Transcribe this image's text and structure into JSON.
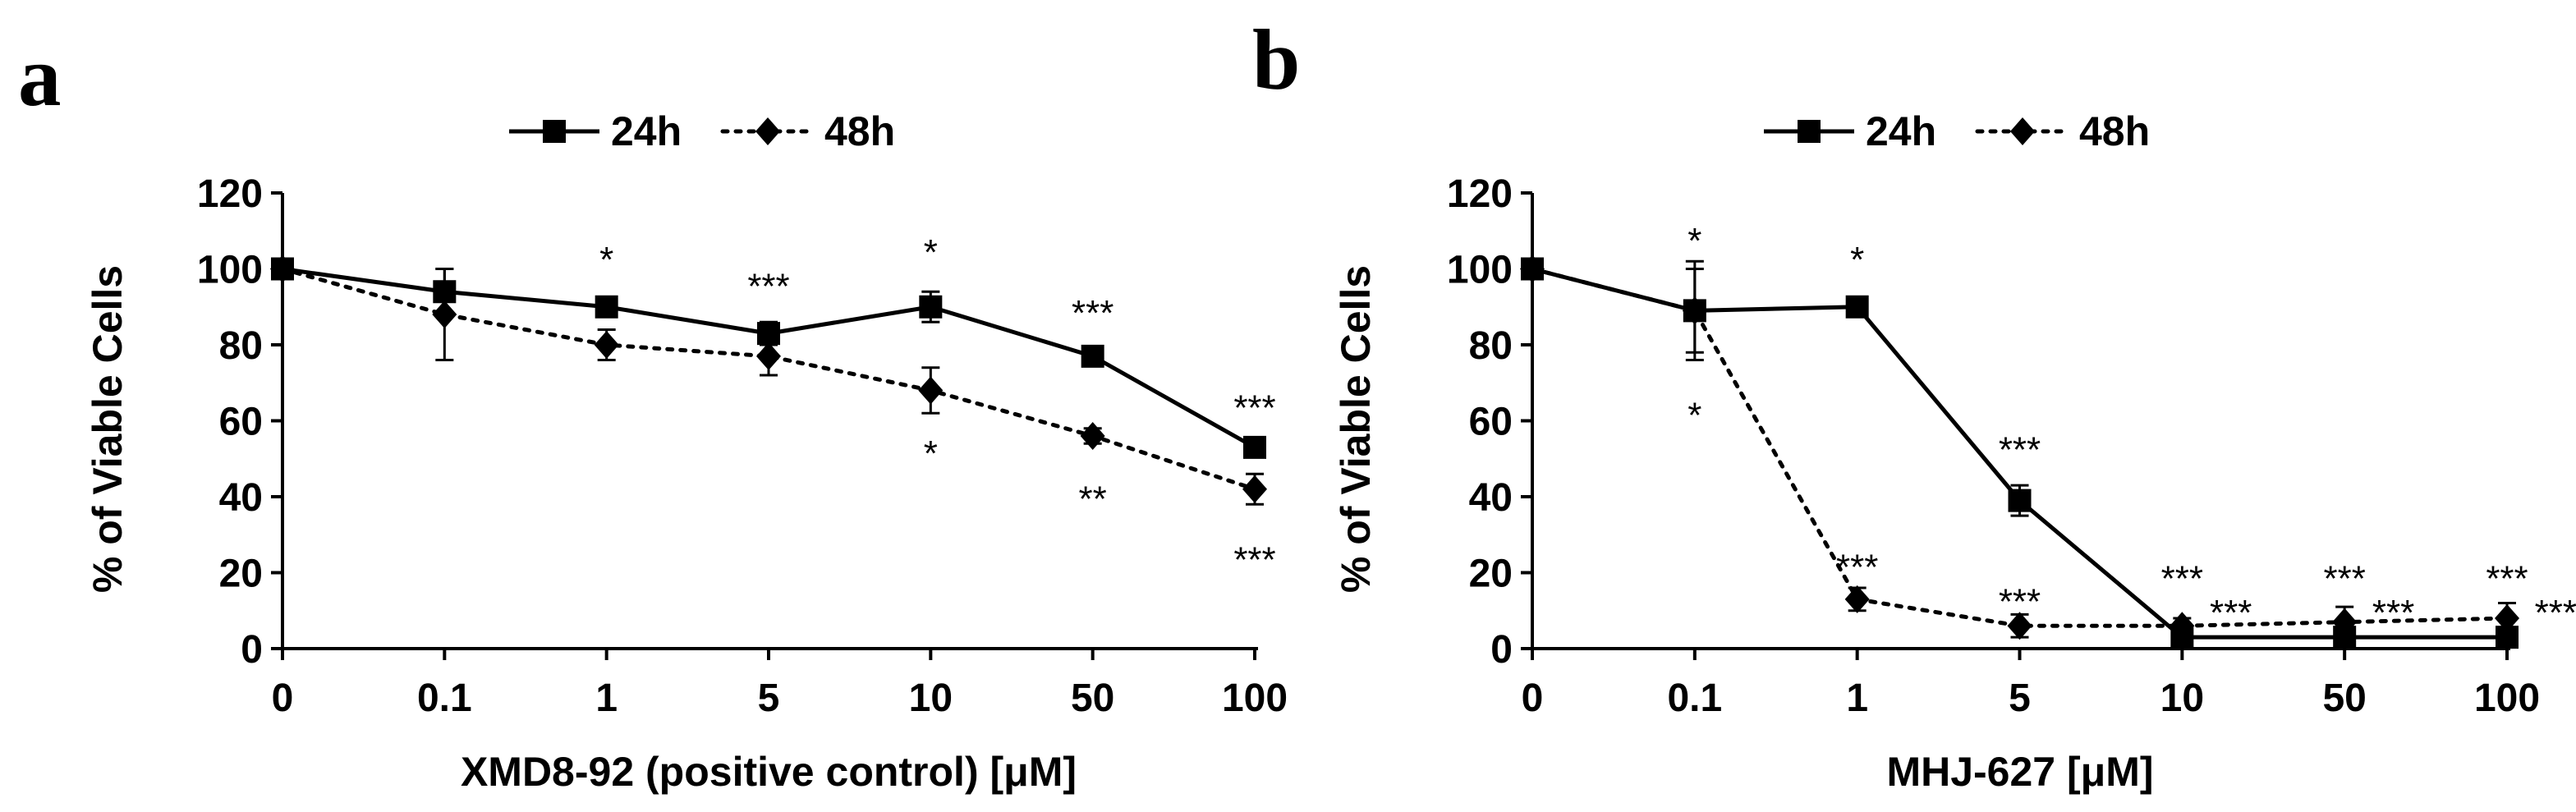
{
  "panel_labels": [
    "a",
    "b"
  ],
  "chart_data": [
    {
      "type": "line",
      "panel": "a",
      "xlabel": "XMD8-92 (positive control) [μM]",
      "ylabel": "% of Viable Cells",
      "ylim": [
        0,
        120
      ],
      "yticks": [
        0,
        20,
        40,
        60,
        80,
        100,
        120
      ],
      "categories": [
        "0",
        "0.1",
        "1",
        "5",
        "10",
        "50",
        "100"
      ],
      "legend": [
        "24h",
        "48h"
      ],
      "series": [
        {
          "name": "24h",
          "style": "solid",
          "marker": "square",
          "values": [
            100,
            94,
            90,
            83,
            90,
            77,
            53
          ],
          "errors": [
            0,
            6,
            2,
            3,
            4,
            2,
            2
          ]
        },
        {
          "name": "48h",
          "style": "dotted",
          "marker": "diamond",
          "values": [
            100,
            88,
            80,
            77,
            68,
            56,
            42
          ],
          "errors": [
            0,
            12,
            4,
            5,
            6,
            2,
            4
          ]
        }
      ],
      "annotations": [
        {
          "text": "*",
          "x": 2,
          "y": 104
        },
        {
          "text": "***",
          "x": 3,
          "y": 97
        },
        {
          "text": "*",
          "x": 4,
          "y": 106
        },
        {
          "text": "***",
          "x": 5,
          "y": 90
        },
        {
          "text": "***",
          "x": 6,
          "y": 65
        },
        {
          "text": "*",
          "x": 4,
          "y": 53
        },
        {
          "text": "**",
          "x": 5,
          "y": 41
        },
        {
          "text": "***",
          "x": 6,
          "y": 25
        }
      ]
    },
    {
      "type": "line",
      "panel": "b",
      "xlabel": "MHJ-627 [μM]",
      "ylabel": "% of Viable Cells",
      "ylim": [
        0,
        120
      ],
      "yticks": [
        0,
        20,
        40,
        60,
        80,
        100,
        120
      ],
      "categories": [
        "0",
        "0.1",
        "1",
        "5",
        "10",
        "50",
        "100"
      ],
      "legend": [
        "24h",
        "48h"
      ],
      "series": [
        {
          "name": "24h",
          "style": "solid",
          "marker": "square",
          "values": [
            100,
            89,
            90,
            39,
            3,
            3,
            3
          ],
          "errors": [
            0,
            11,
            2,
            4,
            2,
            2,
            2
          ]
        },
        {
          "name": "48h",
          "style": "dotted",
          "marker": "diamond",
          "values": [
            100,
            89,
            13,
            6,
            6,
            7,
            8
          ],
          "errors": [
            0,
            13,
            3,
            3,
            2,
            4,
            4
          ]
        }
      ],
      "annotations": [
        {
          "text": "*",
          "x": 1,
          "y": 109
        },
        {
          "text": "*",
          "x": 2,
          "y": 104
        },
        {
          "text": "*",
          "x": 1,
          "y": 63
        },
        {
          "text": "***",
          "x": 3,
          "y": 54
        },
        {
          "text": "***",
          "x": 2,
          "y": 23
        },
        {
          "text": "***",
          "x": 3,
          "y": 14
        },
        {
          "text": "***",
          "x": 4,
          "y": 20
        },
        {
          "text": "***",
          "x": 4.3,
          "y": 11
        },
        {
          "text": "***",
          "x": 5,
          "y": 20
        },
        {
          "text": "***",
          "x": 5.3,
          "y": 11
        },
        {
          "text": "***",
          "x": 6,
          "y": 20
        },
        {
          "text": "***",
          "x": 6.3,
          "y": 11
        }
      ]
    }
  ]
}
